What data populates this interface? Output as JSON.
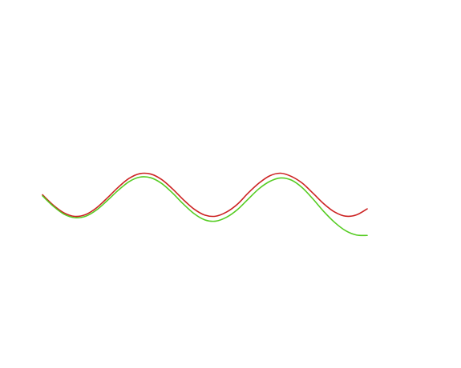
{
  "chart_data": {
    "type": "line",
    "x": [
      0.0,
      0.5,
      1.0,
      1.5,
      2.0,
      2.5,
      3.0,
      3.5,
      4.0,
      4.5,
      5.0,
      5.5,
      6.0,
      6.5,
      7.0,
      7.5,
      8.0,
      8.5,
      9.0,
      9.5,
      10.0,
      10.5,
      11.0,
      11.5,
      12.0,
      12.5,
      13.0,
      13.5,
      14.0,
      14.5,
      15.0
    ],
    "xlim": [
      0,
      15
    ],
    "ylim": [
      -2.5,
      2.5
    ],
    "grid": false,
    "series": [
      {
        "color": "#cc2222",
        "values": [
          0.0,
          -0.48,
          -0.84,
          -1.0,
          -0.91,
          -0.6,
          -0.14,
          0.35,
          0.76,
          0.98,
          0.96,
          0.71,
          0.28,
          -0.22,
          -0.66,
          -0.94,
          -0.99,
          -0.8,
          -0.44,
          0.08,
          0.54,
          0.88,
          1.0,
          0.85,
          0.54,
          0.07,
          -0.42,
          -0.8,
          -0.99,
          -0.93,
          -0.65
        ]
      },
      {
        "color": "#55cc22",
        "values": [
          -0.05,
          -0.53,
          -0.9,
          -1.06,
          -0.99,
          -0.7,
          -0.26,
          0.21,
          0.61,
          0.82,
          0.79,
          0.53,
          0.09,
          -0.42,
          -0.87,
          -1.16,
          -1.22,
          -1.04,
          -0.69,
          -0.2,
          0.28,
          0.62,
          0.78,
          0.68,
          0.33,
          -0.2,
          -0.78,
          -1.28,
          -1.66,
          -1.86,
          -1.88
        ]
      }
    ]
  }
}
